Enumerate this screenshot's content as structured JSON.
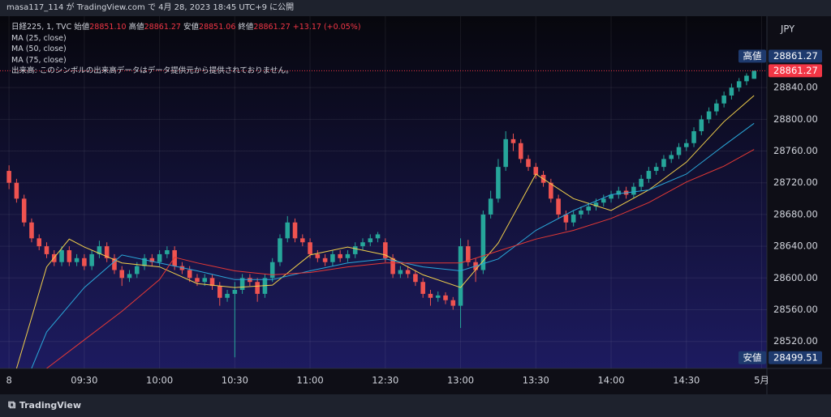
{
  "header": {
    "text": "masa117_114 が TradingView.com で 4月 28, 2023 18:45 UTC+9 に公開"
  },
  "chart_data": {
    "type": "candlestick",
    "symbol": "日経225, 1, TVC",
    "ohlc_legend": [
      {
        "label": "始値",
        "value": "28851.10"
      },
      {
        "label": "高値",
        "value": "28861.27"
      },
      {
        "label": "安値",
        "value": "28851.06"
      },
      {
        "label": "終値",
        "value": "28861.27"
      }
    ],
    "change": "+13.17 (+0.05%)",
    "volume_note": "出来高: このシンボルの出来高データはデータ提供元から提供されておりません。",
    "currency": "JPY",
    "up_color": "#26a69a",
    "down_color": "#ef5350",
    "candles": [
      [
        28735,
        28742,
        28712,
        28720
      ],
      [
        28720,
        28725,
        28695,
        28700
      ],
      [
        28700,
        28705,
        28665,
        28670
      ],
      [
        28670,
        28675,
        28645,
        28650
      ],
      [
        28650,
        28655,
        28635,
        28640
      ],
      [
        28640,
        28645,
        28625,
        28630
      ],
      [
        28630,
        28635,
        28615,
        28620
      ],
      [
        28620,
        28640,
        28615,
        28635
      ],
      [
        28635,
        28640,
        28615,
        28620
      ],
      [
        28620,
        28630,
        28615,
        28625
      ],
      [
        28625,
        28630,
        28610,
        28615
      ],
      [
        28615,
        28635,
        28610,
        28630
      ],
      [
        28630,
        28647,
        28625,
        28640
      ],
      [
        28640,
        28645,
        28620,
        28625
      ],
      [
        28625,
        28630,
        28605,
        28610
      ],
      [
        28610,
        28615,
        28590,
        28600
      ],
      [
        28600,
        28610,
        28595,
        28605
      ],
      [
        28605,
        28620,
        28600,
        28615
      ],
      [
        28615,
        28630,
        28610,
        28625
      ],
      [
        28625,
        28630,
        28615,
        28620
      ],
      [
        28620,
        28635,
        28615,
        28630
      ],
      [
        28630,
        28640,
        28625,
        28635
      ],
      [
        28635,
        28640,
        28610,
        28615
      ],
      [
        28615,
        28620,
        28605,
        28610
      ],
      [
        28610,
        28615,
        28595,
        28600
      ],
      [
        28600,
        28605,
        28590,
        28595
      ],
      [
        28595,
        28605,
        28590,
        28600
      ],
      [
        28600,
        28605,
        28585,
        28590
      ],
      [
        28590,
        28595,
        28565,
        28575
      ],
      [
        28575,
        28585,
        28570,
        28580
      ],
      [
        28580,
        28595,
        28500,
        28585
      ],
      [
        28585,
        28605,
        28580,
        28600
      ],
      [
        28600,
        28605,
        28590,
        28595
      ],
      [
        28595,
        28600,
        28570,
        28580
      ],
      [
        28580,
        28605,
        28575,
        28600
      ],
      [
        28600,
        28625,
        28595,
        28620
      ],
      [
        28620,
        28655,
        28615,
        28650
      ],
      [
        28650,
        28678,
        28645,
        28670
      ],
      [
        28670,
        28675,
        28645,
        28650
      ],
      [
        28650,
        28655,
        28640,
        28645
      ],
      [
        28645,
        28650,
        28625,
        28630
      ],
      [
        28630,
        28635,
        28620,
        28625
      ],
      [
        28625,
        28630,
        28615,
        28620
      ],
      [
        28620,
        28635,
        28615,
        28630
      ],
      [
        28630,
        28635,
        28620,
        28625
      ],
      [
        28625,
        28635,
        28620,
        28630
      ],
      [
        28630,
        28645,
        28625,
        28640
      ],
      [
        28640,
        28650,
        28635,
        28645
      ],
      [
        28645,
        28655,
        28640,
        28650
      ],
      [
        28650,
        28658,
        28645,
        28655
      ],
      [
        28645,
        28650,
        28620,
        28625
      ],
      [
        28625,
        28630,
        28600,
        28605
      ],
      [
        28605,
        28615,
        28600,
        28610
      ],
      [
        28610,
        28615,
        28600,
        28605
      ],
      [
        28605,
        28610,
        28590,
        28595
      ],
      [
        28595,
        28600,
        28575,
        28580
      ],
      [
        28580,
        28585,
        28565,
        28575
      ],
      [
        28575,
        28583,
        28570,
        28578
      ],
      [
        28578,
        28582,
        28567,
        28572
      ],
      [
        28572,
        28576,
        28560,
        28565
      ],
      [
        28565,
        28650,
        28537,
        28640
      ],
      [
        28640,
        28648,
        28615,
        28620
      ],
      [
        28620,
        28625,
        28595,
        28610
      ],
      [
        28610,
        28685,
        28605,
        28680
      ],
      [
        28680,
        28710,
        28675,
        28700
      ],
      [
        28700,
        28750,
        28695,
        28740
      ],
      [
        28740,
        28785,
        28735,
        28775
      ],
      [
        28775,
        28782,
        28760,
        28770
      ],
      [
        28770,
        28775,
        28745,
        28750
      ],
      [
        28750,
        28755,
        28735,
        28740
      ],
      [
        28740,
        28745,
        28725,
        28730
      ],
      [
        28730,
        28735,
        28715,
        28720
      ],
      [
        28720,
        28725,
        28695,
        28700
      ],
      [
        28700,
        28705,
        28675,
        28680
      ],
      [
        28680,
        28685,
        28660,
        28670
      ],
      [
        28670,
        28685,
        28665,
        28680
      ],
      [
        28680,
        28690,
        28675,
        28685
      ],
      [
        28685,
        28695,
        28680,
        28690
      ],
      [
        28690,
        28700,
        28685,
        28695
      ],
      [
        28695,
        28705,
        28690,
        28700
      ],
      [
        28700,
        28710,
        28695,
        28705
      ],
      [
        28705,
        28715,
        28700,
        28710
      ],
      [
        28710,
        28715,
        28700,
        28705
      ],
      [
        28705,
        28720,
        28700,
        28715
      ],
      [
        28715,
        28730,
        28710,
        28725
      ],
      [
        28725,
        28740,
        28720,
        28735
      ],
      [
        28735,
        28745,
        28730,
        28740
      ],
      [
        28740,
        28755,
        28735,
        28750
      ],
      [
        28750,
        28760,
        28745,
        28755
      ],
      [
        28755,
        28770,
        28750,
        28765
      ],
      [
        28765,
        28775,
        28760,
        28770
      ],
      [
        28770,
        28790,
        28765,
        28785
      ],
      [
        28785,
        28805,
        28780,
        28800
      ],
      [
        28800,
        28815,
        28795,
        28810
      ],
      [
        28810,
        28825,
        28805,
        28820
      ],
      [
        28820,
        28835,
        28815,
        28830
      ],
      [
        28830,
        28845,
        28825,
        28840
      ],
      [
        28840,
        28852,
        28835,
        28848
      ],
      [
        28848,
        28858,
        28843,
        28855
      ],
      [
        28851.1,
        28861.27,
        28851.06,
        28861.27
      ]
    ],
    "series": [
      {
        "name": "MA (25, close)",
        "color": "#f2d04b",
        "x": [
          1,
          5,
          8,
          10,
          15,
          20,
          25,
          30,
          35,
          40,
          45,
          50,
          55,
          60,
          65,
          70,
          75,
          80,
          85,
          90,
          95,
          99
        ],
        "values": [
          28486,
          28614,
          28649,
          28639,
          28619,
          28614,
          28593,
          28588,
          28591,
          28629,
          28639,
          28629,
          28604,
          28588,
          28644,
          28731,
          28700,
          28685,
          28711,
          28746,
          28797,
          28830
        ]
      },
      {
        "name": "MA (50, close)",
        "color": "#2aa7d8",
        "x": [
          3,
          5,
          10,
          15,
          20,
          25,
          30,
          35,
          40,
          45,
          50,
          55,
          60,
          65,
          70,
          75,
          80,
          85,
          90,
          95,
          99
        ],
        "values": [
          28486,
          28532,
          28588,
          28629,
          28619,
          28609,
          28598,
          28598,
          28609,
          28619,
          28624,
          28614,
          28609,
          28624,
          28660,
          28685,
          28705,
          28711,
          28731,
          28767,
          28795
        ]
      },
      {
        "name": "MA (75, close)",
        "color": "#e53935",
        "x": [
          5,
          10,
          15,
          20,
          22,
          25,
          30,
          35,
          40,
          45,
          50,
          55,
          60,
          65,
          70,
          75,
          80,
          85,
          90,
          95,
          99
        ],
        "values": [
          28486,
          28522,
          28558,
          28598,
          28626,
          28619,
          28609,
          28604,
          28607,
          28614,
          28619,
          28619,
          28619,
          28634,
          28649,
          28660,
          28675,
          28695,
          28721,
          28741,
          28762
        ]
      }
    ],
    "price_tags": [
      {
        "label": "高値",
        "value": 28861.27,
        "color": "#1e3a6e"
      },
      {
        "value": 28861.27,
        "color": "#f23645",
        "line": true
      },
      {
        "label": "安値",
        "value": 28499.51,
        "color": "#1e3a6e"
      }
    ],
    "xlim": [
      -1.2,
      100.7
    ],
    "xticks": [
      {
        "value": 0,
        "label": "8"
      },
      {
        "value": 10,
        "label": "09:30"
      },
      {
        "value": 20,
        "label": "10:00"
      },
      {
        "value": 30,
        "label": "10:30"
      },
      {
        "value": 40,
        "label": "11:00"
      },
      {
        "value": 50,
        "label": "12:30"
      },
      {
        "value": 60,
        "label": "13:00"
      },
      {
        "value": 70,
        "label": "13:30"
      },
      {
        "value": 80,
        "label": "14:00"
      },
      {
        "value": 90,
        "label": "14:30"
      },
      {
        "value": 100,
        "label": "5月"
      }
    ],
    "ylim": [
      28486,
      28930
    ],
    "yticks": [
      {
        "value": 28520,
        "label": "28520.00"
      },
      {
        "value": 28560,
        "label": "28560.00"
      },
      {
        "value": 28600,
        "label": "28600.00"
      },
      {
        "value": 28640,
        "label": "28640.00"
      },
      {
        "value": 28680,
        "label": "28680.00"
      },
      {
        "value": 28720,
        "label": "28720.00"
      },
      {
        "value": 28760,
        "label": "28760.00"
      },
      {
        "value": 28800,
        "label": "28800.00"
      },
      {
        "value": 28840,
        "label": "28840.00"
      }
    ],
    "grid": true
  },
  "footer": {
    "brand": "TradingView"
  }
}
